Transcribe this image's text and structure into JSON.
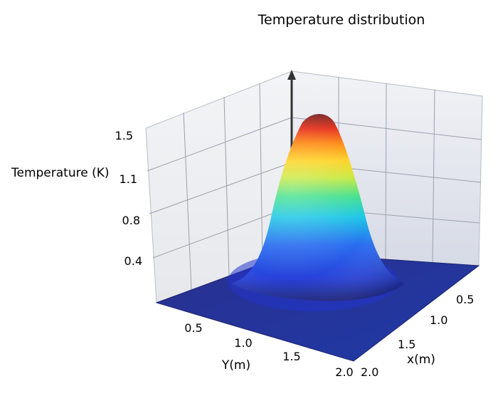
{
  "chart_data": {
    "type": "surface3d",
    "title": "Temperature distribution",
    "zlabel": "Temperature (K)",
    "ylabel": "Y(m)",
    "xlabel": "x(m)",
    "zticks": [
      "0.4",
      "0.8",
      "1.1",
      "1.5"
    ],
    "yticks": [
      "0.5",
      "1.0",
      "1.5",
      "2.0"
    ],
    "xticks": [
      "0.5",
      "1.0",
      "1.5",
      "2.0"
    ],
    "xlim": [
      0,
      2
    ],
    "ylim": [
      0,
      2
    ],
    "zlim": [
      0,
      1.5
    ],
    "peak": {
      "x": 1.0,
      "y": 1.0,
      "z": 1.5
    },
    "spread": 0.3,
    "colormap": [
      "#1a237e",
      "#1f3ccf",
      "#2a6cf0",
      "#19c6e6",
      "#3fe08a",
      "#c8e83a",
      "#ffd21f",
      "#ff8a10",
      "#e8321c",
      "#7a2a2a"
    ],
    "grid": true
  }
}
